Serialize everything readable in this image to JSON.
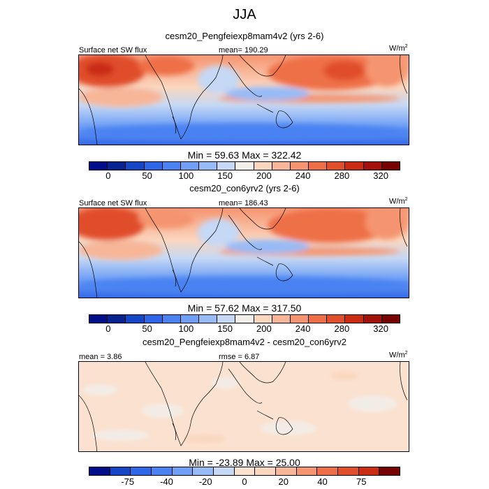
{
  "title": "JJA",
  "panels": [
    {
      "title": "cesm20_Pengfeiexp8mam4v2 (yrs 2-6)",
      "left_label": "Surface net SW flux",
      "center_label": "mean= 190.29",
      "units": "W/m",
      "units_sup": "2",
      "minmax": "Min =  59.63 Max = 322.42",
      "colorbar_ticks": [
        "0",
        "50",
        "100",
        "150",
        "200",
        "240",
        "280",
        "320"
      ]
    },
    {
      "title": "cesm20_con6yrv2 (yrs 2-6)",
      "left_label": "Surface net SW flux",
      "center_label": "mean= 186.43",
      "units": "W/m",
      "units_sup": "2",
      "minmax": "Min =  57.62 Max = 317.50",
      "colorbar_ticks": [
        "0",
        "50",
        "100",
        "150",
        "200",
        "240",
        "280",
        "320"
      ]
    },
    {
      "title": "cesm20_Pengfeiexp8mam4v2 - cesm20_con6yrv2",
      "left_label": "mean =   3.86",
      "center_label": "rmse =   6.87",
      "units": "W/m",
      "units_sup": "2",
      "minmax": "Min = -23.89 Max =  25.00",
      "colorbar_ticks": [
        "-75",
        "-40",
        "-20",
        "0",
        "20",
        "40",
        "75"
      ]
    }
  ],
  "colors": {
    "abs_scale": [
      "#000e8a",
      "#06238f",
      "#1446c6",
      "#2f66e8",
      "#4a82f2",
      "#6fa0f5",
      "#97bbf7",
      "#c5d8f5",
      "#f2eee9",
      "#fbd6be",
      "#f8b698",
      "#f59470",
      "#ee6f47",
      "#e04e2b",
      "#c92b13",
      "#a3120a",
      "#760300"
    ],
    "diff_scale": [
      "#000e8a",
      "#1446c6",
      "#2f66e8",
      "#4a82f2",
      "#6fa0f5",
      "#97bbf7",
      "#c5d8f5",
      "#fbe1cf",
      "#fbd6be",
      "#f8b698",
      "#f59470",
      "#ee6f47",
      "#e04e2b",
      "#c92b13",
      "#760300"
    ]
  }
}
